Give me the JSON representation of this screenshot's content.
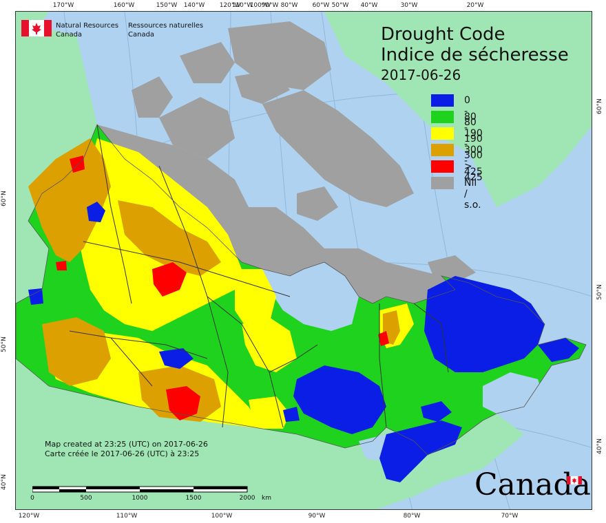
{
  "map": {
    "title_en": "Drought Code",
    "title_fr": "Indice de sécheresse",
    "date": "2017-06-26",
    "agency_en_1": "Natural Resources",
    "agency_en_2": "Canada",
    "agency_fr_1": "Ressources naturelles",
    "agency_fr_2": "Canada",
    "credit_en": "Map created at 23:25 (UTC) on 2017-06-26",
    "credit_fr": "Carte créée le 2017-06-26 (UTC) à 23:25",
    "wordmark": "Canada",
    "scale_unit": "km",
    "scale_ticks": [
      "0",
      "500",
      "1000",
      "1500",
      "2000"
    ]
  },
  "legend": [
    {
      "label": "0 - 80",
      "color": "#0a1ee6"
    },
    {
      "label": "80 - 190",
      "color": "#1ed21e"
    },
    {
      "label": "190 - 300",
      "color": "#ffff00"
    },
    {
      "label": "300 - 425",
      "color": "#dca000"
    },
    {
      "label": "> 425",
      "color": "#ff0000"
    },
    {
      "label": "Nil / s.o.",
      "color": "#a0a0a0"
    }
  ],
  "graticule": {
    "top_lon_labels": [
      "170°W",
      "160°W",
      "150°W",
      "140°W",
      "120°W",
      "110°W",
      "100°W",
      "90°W",
      "80°W",
      "60°W",
      "50°W",
      "40°W",
      "30°W",
      "20°W"
    ],
    "bottom_lon_labels": [
      "120°W",
      "110°W",
      "100°W",
      "90°W",
      "80°W",
      "70°W"
    ],
    "left_lat_labels": [
      "60°N",
      "50°N",
      "40°N"
    ],
    "right_lat_labels": [
      "60°N",
      "50°N",
      "40°N"
    ]
  },
  "colors": {
    "water": "#aed2f0",
    "land_outside": "#a0e6b4",
    "nil": "#a0a0a0",
    "code_0_80": "#0a1ee6",
    "code_80_190": "#1ed21e",
    "code_190_300": "#ffff00",
    "code_300_425": "#dca000",
    "code_425_plus": "#ff0000"
  }
}
